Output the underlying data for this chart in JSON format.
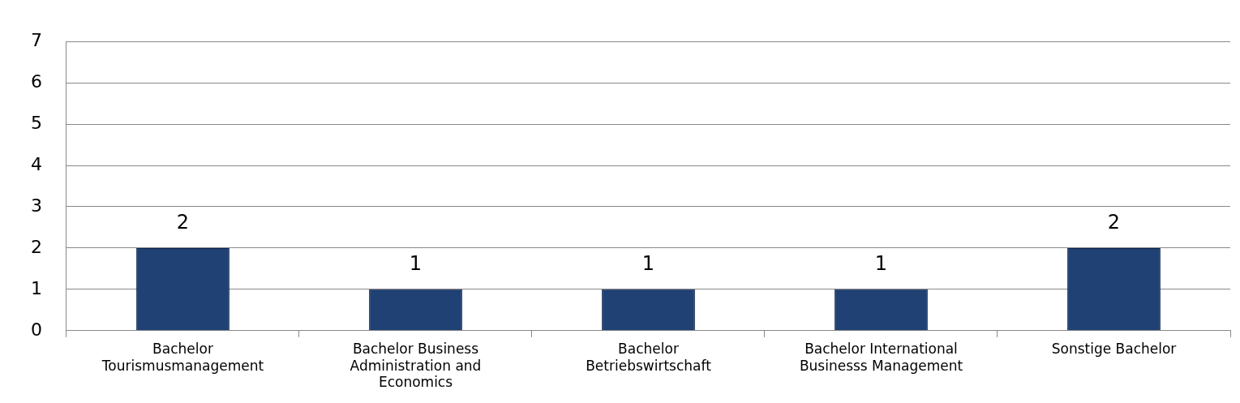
{
  "chart_data": {
    "type": "bar",
    "categories": [
      "Bachelor Tourismusmanagement",
      "Bachelor Business Administration and Economics",
      "Bachelor Betriebswirtschaft",
      "Bachelor International Businesss Management",
      "Sonstige Bachelor"
    ],
    "values": [
      2,
      1,
      1,
      1,
      2
    ],
    "color": "#1f4173",
    "ylim": [
      0,
      7
    ],
    "yticks": [
      0,
      1,
      2,
      3,
      4,
      5,
      6,
      7
    ],
    "grid": "y",
    "legend": false,
    "data_labels": true
  }
}
